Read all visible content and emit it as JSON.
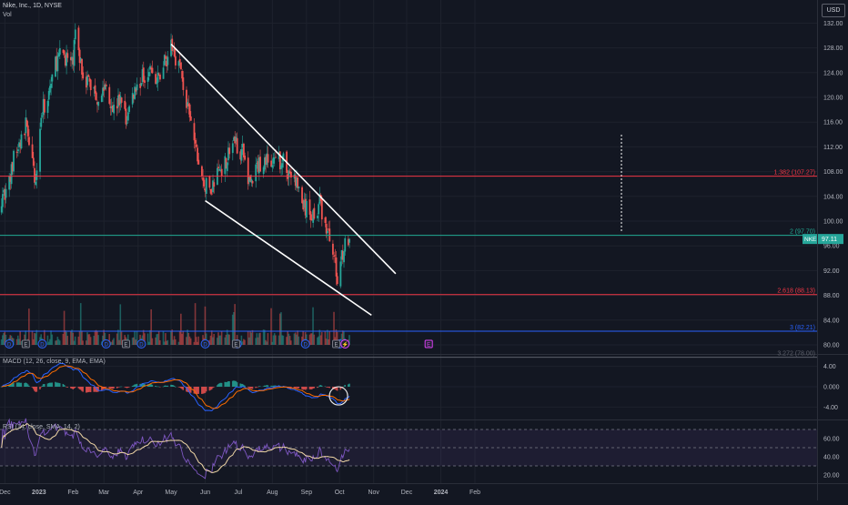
{
  "header": {
    "title": "Nike, Inc., 1D, NYSE",
    "vol_label": "Vol",
    "currency": "USD"
  },
  "macd": {
    "label": "MACD (12, 26, close, 9, EMA, EMA)"
  },
  "rsi": {
    "label": "RSI (14, close, SMA, 14, 2)"
  },
  "colors": {
    "background": "#131722",
    "up": "#26a69a",
    "down": "#ef5350",
    "grid": "#1e222d",
    "trendline": "#ffffff",
    "fib_red": "#f23645",
    "fib_teal": "#22ab94",
    "fib_blue": "#2962ff",
    "macd_line": "#2962ff",
    "signal_line": "#ff6d00",
    "rsi_line": "#7e57c2",
    "rsi_ma": "#f0d7a6",
    "rsi_band": "#7e57c2"
  },
  "chart_data": [
    {
      "type": "candlestick",
      "symbol": "NKE",
      "interval": "1D",
      "exchange": "NYSE",
      "ylim": [
        78,
        132
      ],
      "y_ticks": [
        "132.00",
        "128.00",
        "124.00",
        "120.00",
        "116.00",
        "112.00",
        "108.00",
        "104.00",
        "100.00",
        "96.00",
        "92.00",
        "88.00",
        "84.00",
        "80.00"
      ],
      "x_ticks": [
        "Dec",
        "2023",
        "Feb",
        "Mar",
        "Apr",
        "May",
        "Jun",
        "Jul",
        "Aug",
        "Sep",
        "Oct",
        "Nov",
        "Dec",
        "2024",
        "Feb"
      ],
      "close_path": [
        {
          "date": "2022-11-28",
          "close": 104
        },
        {
          "date": "2022-12-05",
          "close": 106
        },
        {
          "date": "2022-12-09",
          "close": 110
        },
        {
          "date": "2022-12-16",
          "close": 113
        },
        {
          "date": "2022-12-21",
          "close": 116
        },
        {
          "date": "2022-12-28",
          "close": 106
        },
        {
          "date": "2023-01-03",
          "close": 117
        },
        {
          "date": "2023-01-10",
          "close": 121
        },
        {
          "date": "2023-01-17",
          "close": 126
        },
        {
          "date": "2023-01-24",
          "close": 127
        },
        {
          "date": "2023-01-31",
          "close": 125
        },
        {
          "date": "2023-02-03",
          "close": 130
        },
        {
          "date": "2023-02-10",
          "close": 124
        },
        {
          "date": "2023-02-17",
          "close": 122
        },
        {
          "date": "2023-02-24",
          "close": 120
        },
        {
          "date": "2023-03-03",
          "close": 122
        },
        {
          "date": "2023-03-10",
          "close": 118
        },
        {
          "date": "2023-03-17",
          "close": 120
        },
        {
          "date": "2023-03-21",
          "close": 116
        },
        {
          "date": "2023-03-28",
          "close": 121
        },
        {
          "date": "2023-04-04",
          "close": 123
        },
        {
          "date": "2023-04-11",
          "close": 125
        },
        {
          "date": "2023-04-18",
          "close": 122
        },
        {
          "date": "2023-04-25",
          "close": 126
        },
        {
          "date": "2023-05-02",
          "close": 128
        },
        {
          "date": "2023-05-09",
          "close": 125
        },
        {
          "date": "2023-05-16",
          "close": 118
        },
        {
          "date": "2023-05-23",
          "close": 112
        },
        {
          "date": "2023-05-30",
          "close": 106
        },
        {
          "date": "2023-06-06",
          "close": 105
        },
        {
          "date": "2023-06-13",
          "close": 108
        },
        {
          "date": "2023-06-20",
          "close": 110
        },
        {
          "date": "2023-06-27",
          "close": 113
        },
        {
          "date": "2023-07-05",
          "close": 111
        },
        {
          "date": "2023-07-12",
          "close": 106
        },
        {
          "date": "2023-07-19",
          "close": 109
        },
        {
          "date": "2023-07-26",
          "close": 110
        },
        {
          "date": "2023-08-02",
          "close": 109
        },
        {
          "date": "2023-08-09",
          "close": 110
        },
        {
          "date": "2023-08-16",
          "close": 108
        },
        {
          "date": "2023-08-23",
          "close": 106
        },
        {
          "date": "2023-08-30",
          "close": 102
        },
        {
          "date": "2023-09-06",
          "close": 101
        },
        {
          "date": "2023-09-13",
          "close": 103
        },
        {
          "date": "2023-09-20",
          "close": 98
        },
        {
          "date": "2023-09-25",
          "close": 96
        },
        {
          "date": "2023-09-29",
          "close": 90
        },
        {
          "date": "2023-10-03",
          "close": 95
        },
        {
          "date": "2023-10-06",
          "close": 96
        },
        {
          "date": "2023-10-10",
          "close": 97.11
        }
      ],
      "horizontal_levels": [
        {
          "label": "1.382 (107.27)",
          "value": 107.27,
          "color": "#f23645"
        },
        {
          "label": "2 (97.70)",
          "value": 97.7,
          "color": "#22ab94"
        },
        {
          "label": "2.618 (88.13)",
          "value": 88.13,
          "color": "#f23645"
        },
        {
          "label": "3 (82.21)",
          "value": 82.21,
          "color": "#2962ff"
        },
        {
          "label": "3.272 (78.00)",
          "value": 78.0,
          "color": "#5d606b"
        }
      ],
      "last_price": {
        "symbol": "NKE",
        "value": "97.11"
      },
      "trendlines": [
        {
          "from": {
            "date": "2023-05-01",
            "price": 128.6
          },
          "to": {
            "date": "2023-11-21",
            "price": 91.5
          }
        },
        {
          "from": {
            "date": "2023-06-01",
            "price": 103.3
          },
          "to": {
            "date": "2023-10-30",
            "price": 84.8
          }
        }
      ],
      "event_markers": {
        "dividend": [
          "D",
          "D",
          "D",
          "D",
          "D",
          "D",
          "D",
          "D"
        ],
        "earnings": [
          "E",
          "E",
          "E",
          "E",
          "E"
        ],
        "split": [
          "⚡"
        ]
      }
    },
    {
      "type": "bar",
      "name": "MACD",
      "y_ticks": [
        "4.00",
        "0.000",
        "-4.00"
      ],
      "ylim": [
        -6,
        6
      ]
    },
    {
      "type": "line",
      "name": "RSI",
      "y_ticks": [
        "60.00",
        "40.00",
        "20.00"
      ],
      "ylim": [
        10,
        80
      ],
      "bands": [
        70,
        50,
        30
      ]
    }
  ]
}
